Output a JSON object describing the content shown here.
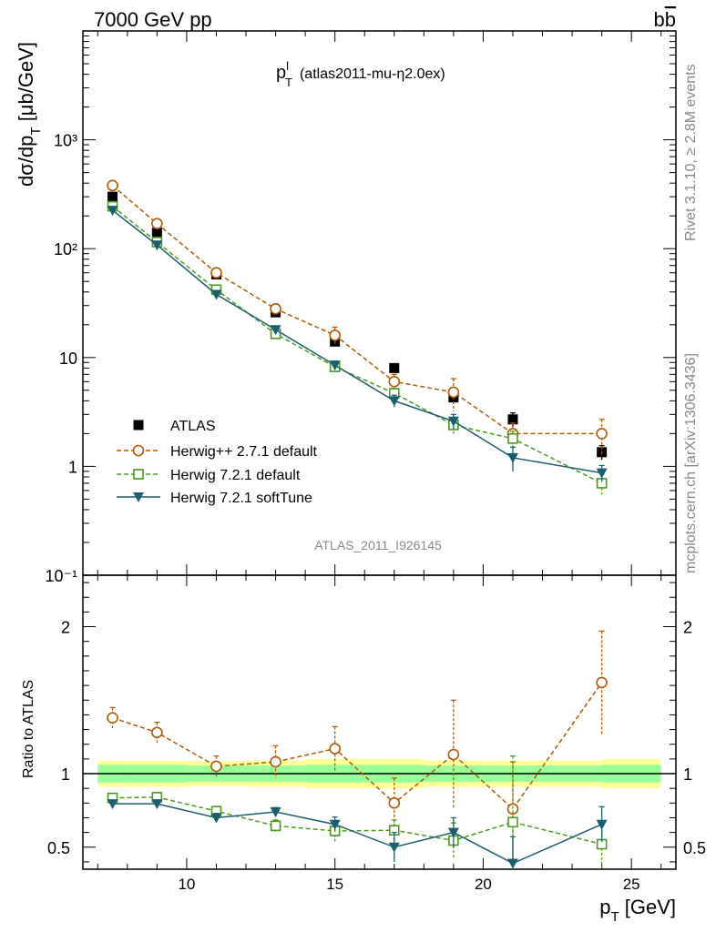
{
  "header": {
    "energy_label": "7000 GeV pp",
    "process_label": "bb̅",
    "plot_title_main": "p",
    "plot_title_sub": "T",
    "plot_title_sup": "l",
    "plot_title_tag": "(atlas2011-mu-η2.0ex)"
  },
  "side_notes": {
    "rivet": "Rivet 3.1.10, ≥ 2.8M events",
    "mcplots": "mcplots.cern.ch [arXiv:1306.3436]"
  },
  "watermark": "ATLAS_2011_I926145",
  "axes": {
    "ylabel_main": "dσ/dp",
    "ylabel_main_sub": "T",
    "ylabel_main_unit": " [μb/GeV]",
    "ylabel_ratio": "Ratio to ATLAS",
    "xlabel": "p",
    "xlabel_sub": "T",
    "xlabel_unit": " [GeV]"
  },
  "colors": {
    "data": "#000000",
    "herwigpp": "#b35900",
    "herwig721": "#4a9a1e",
    "softtune": "#1b5e6e",
    "band_outer": "#ffff99",
    "band_inner": "#99ff99"
  },
  "chart_data": [
    {
      "type": "line",
      "y_scale": "log",
      "xlim": [
        6.5,
        26.5
      ],
      "ylim": [
        0.1,
        10000
      ],
      "x_ticks": [
        10,
        15,
        20,
        25
      ],
      "y_tick_labels": [
        "10⁻¹",
        "1",
        "10",
        "10²",
        "10³"
      ],
      "y_tick_values": [
        0.1,
        1,
        10,
        100,
        1000
      ],
      "x": [
        7.5,
        9,
        11,
        13,
        15,
        17,
        19,
        21,
        24
      ],
      "series": [
        {
          "name": "ATLAS",
          "style": "markers-square-filled",
          "values": [
            300,
            140,
            58,
            26,
            14,
            8,
            4.3,
            2.7,
            1.35
          ],
          "errors": [
            0,
            0,
            0,
            0,
            0,
            0.6,
            0.5,
            0.4,
            0.2
          ]
        },
        {
          "name": "Herwig++ 2.7.1 default",
          "style": "dashed-circle-open",
          "values": [
            380,
            170,
            60,
            28,
            16,
            6,
            4.8,
            2,
            2
          ],
          "errors": [
            0,
            0,
            0,
            3,
            3,
            1,
            1.6,
            0.5,
            0.7
          ]
        },
        {
          "name": "Herwig 7.2.1 default",
          "style": "dashed-square-open",
          "values": [
            245,
            115,
            42,
            16.5,
            8.2,
            4.7,
            2.4,
            1.8,
            0.7
          ],
          "errors": [
            0,
            0,
            0,
            0,
            0,
            0.5,
            0.4,
            0.3,
            0.15
          ]
        },
        {
          "name": "Herwig 7.2.1 softTune",
          "style": "solid-triangle-down",
          "values": [
            225,
            108,
            38,
            18,
            8.5,
            4,
            2.6,
            1.2,
            0.87
          ],
          "errors": [
            0,
            0,
            0,
            1.5,
            0.8,
            0.5,
            0.4,
            0.3,
            0.15
          ]
        }
      ]
    },
    {
      "type": "line",
      "ylabel": "Ratio to ATLAS",
      "xlim": [
        6.5,
        26.5
      ],
      "ylim": [
        0.35,
        2.35
      ],
      "x_ticks": [
        10,
        15,
        20,
        25
      ],
      "y_ticks": [
        0.5,
        1,
        2
      ],
      "x": [
        7.5,
        9,
        11,
        13,
        15,
        17,
        19,
        21,
        24
      ],
      "band": {
        "x_edges": [
          7,
          8,
          10,
          12,
          14,
          16,
          18,
          20,
          22,
          24,
          26
        ],
        "inner_half_width": [
          0.06,
          0.06,
          0.055,
          0.055,
          0.06,
          0.06,
          0.055,
          0.055,
          0.055,
          0.06
        ],
        "outer_half_width": [
          0.09,
          0.09,
          0.085,
          0.09,
          0.1,
          0.1,
          0.09,
          0.09,
          0.09,
          0.1
        ]
      },
      "series": [
        {
          "name": "Herwig++ 2.7.1 default",
          "values": [
            1.38,
            1.28,
            1.05,
            1.08,
            1.17,
            0.8,
            1.13,
            0.76,
            1.62
          ],
          "errors": [
            0.07,
            0.07,
            0.07,
            0.11,
            0.15,
            0.17,
            0.37,
            0.32,
            0.35
          ]
        },
        {
          "name": "Herwig 7.2.1 default",
          "values": [
            0.835,
            0.84,
            0.745,
            0.645,
            0.61,
            0.615,
            0.545,
            0.67,
            0.52
          ],
          "errors": [
            0.02,
            0.02,
            0.03,
            0.04,
            0.07,
            0.07,
            0.12,
            0.45,
            0.16
          ]
        },
        {
          "name": "Herwig 7.2.1 softTune",
          "values": [
            0.795,
            0.795,
            0.7,
            0.74,
            0.655,
            0.5,
            0.6,
            0.39,
            0.655
          ],
          "errors": [
            0.01,
            0.02,
            0.03,
            0.03,
            0.05,
            0.1,
            0.1,
            0.18,
            0.12
          ]
        }
      ]
    }
  ]
}
